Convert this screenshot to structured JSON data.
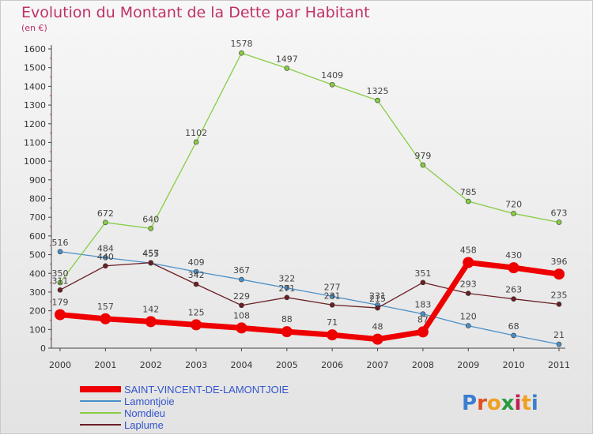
{
  "chart_data": {
    "type": "line",
    "title": "Evolution du Montant de la Dette par Habitant",
    "subtitle": "(en €)",
    "categories": [
      "2000",
      "2001",
      "2002",
      "2003",
      "2004",
      "2005",
      "2006",
      "2007",
      "2008",
      "2009",
      "2010",
      "2011"
    ],
    "ylim": [
      0,
      1600
    ],
    "yticks": [
      0,
      100,
      200,
      300,
      400,
      500,
      600,
      700,
      800,
      900,
      1000,
      1100,
      1200,
      1300,
      1400,
      1500,
      1600
    ],
    "grid": false,
    "legend_position": "bottom-left",
    "series": [
      {
        "name": "SAINT-VINCENT-DE-LAMONTJOIE",
        "color": "#ee0000",
        "emphasis": true,
        "values": [
          179,
          157,
          142,
          125,
          108,
          88,
          71,
          48,
          87,
          458,
          430,
          396
        ]
      },
      {
        "name": "Lamontjoie",
        "color": "#4a90c8",
        "values": [
          516,
          484,
          455,
          409,
          367,
          322,
          277,
          231,
          183,
          120,
          68,
          21
        ]
      },
      {
        "name": "Nomdieu",
        "color": "#88cc44",
        "values": [
          350,
          672,
          640,
          1102,
          1578,
          1497,
          1409,
          1325,
          979,
          785,
          720,
          673
        ]
      },
      {
        "name": "Laplume",
        "color": "#6b1f24",
        "values": [
          311,
          440,
          457,
          342,
          229,
          271,
          231,
          215,
          351,
          293,
          263,
          235
        ]
      }
    ]
  },
  "branding": {
    "logo_text": "Proxiti"
  }
}
